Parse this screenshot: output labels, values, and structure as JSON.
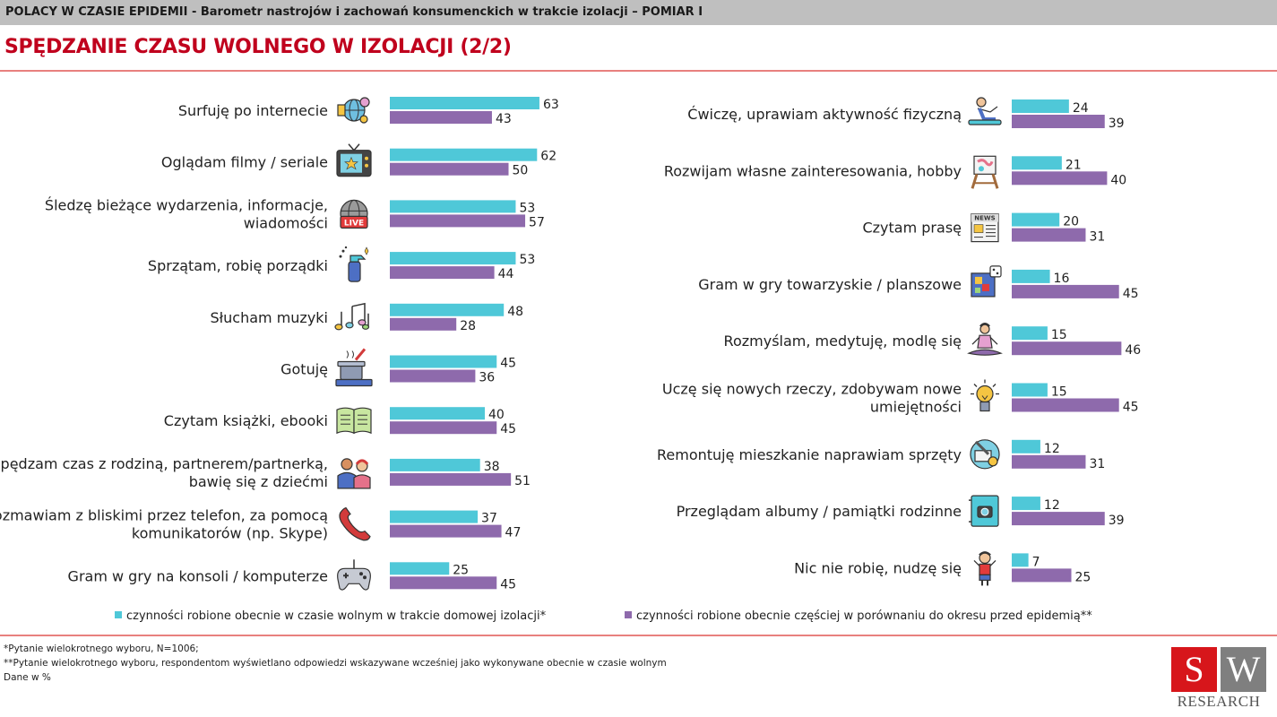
{
  "header": {
    "survey_title": "POLACY W CZASIE EPIDEMII - Barometr nastrojów i zachowań konsumenckich w trakcie izolacji – POMIAR I",
    "page_title": "SPĘDZANIE CZASU WOLNEGO W IZOLACJI (2/2)"
  },
  "chart_data": [
    {
      "type": "bar",
      "orientation": "horizontal",
      "categories": [
        [
          "Surfuję po internecie"
        ],
        [
          "Oglądam filmy / seriale"
        ],
        [
          "Śledzę bieżące wydarzenia, informacje,",
          "wiadomości"
        ],
        [
          "Sprzątam, robię porządki"
        ],
        [
          "Słucham muzyki"
        ],
        [
          "Gotuję"
        ],
        [
          "Czytam książki, ebooki"
        ],
        [
          "Spędzam czas z rodziną, partnerem/partnerką,",
          "bawię się z  dziećmi"
        ],
        [
          "Rozmawiam z bliskimi przez telefon, za pomocą",
          "komunikatorów (np. Skype)"
        ],
        [
          "Gram w gry na konsoli / komputerze"
        ]
      ],
      "icons": [
        "internet-icon",
        "tv-icon",
        "live-news-globe-icon",
        "cleaning-spray-icon",
        "music-notes-icon",
        "cooking-pot-icon",
        "open-book-icon",
        "family-icon",
        "phone-icon",
        "gamepad-icon"
      ],
      "series": [
        {
          "name": "czynności robione obecnie w czasie wolnym w trakcie domowej izolacji*",
          "color": "#4fc8d8",
          "values": [
            63,
            62,
            53,
            53,
            48,
            45,
            40,
            38,
            37,
            25
          ]
        },
        {
          "name": "czynności robione obecnie częściej w porównaniu do okresu przed epidemią**",
          "color": "#8e6aac",
          "values": [
            43,
            50,
            57,
            44,
            28,
            36,
            45,
            51,
            47,
            45
          ]
        }
      ]
    },
    {
      "type": "bar",
      "orientation": "horizontal",
      "categories": [
        [
          "Ćwiczę, uprawiam aktywność fizyczną"
        ],
        [
          "Rozwijam własne zainteresowania, hobby"
        ],
        [
          "Czytam prasę"
        ],
        [
          "Gram w gry towarzyskie / planszowe"
        ],
        [
          "Rozmyślam, medytuję, modlę się"
        ],
        [
          "Uczę się nowych rzeczy, zdobywam nowe",
          "umiejętności"
        ],
        [
          "Remontuję mieszkanie naprawiam  sprzęty"
        ],
        [
          "Przeglądam albumy / pamiątki rodzinne"
        ],
        [
          "Nic nie robię, nudzę się"
        ]
      ],
      "icons": [
        "exercise-icon",
        "easel-icon",
        "newspaper-icon",
        "board-game-icon",
        "meditation-icon",
        "lightbulb-icon",
        "repair-tools-icon",
        "photo-album-icon",
        "bored-person-icon"
      ],
      "series": [
        {
          "name": "czynności robione obecnie w czasie wolnym w trakcie domowej izolacji*",
          "color": "#4fc8d8",
          "values": [
            24,
            21,
            20,
            16,
            15,
            15,
            12,
            12,
            7
          ]
        },
        {
          "name": "czynności robione obecnie częściej w porównaniu do okresu przed epidemią**",
          "color": "#8e6aac",
          "values": [
            39,
            40,
            31,
            45,
            46,
            45,
            31,
            39,
            25
          ]
        }
      ]
    }
  ],
  "footnotes": [
    "*Pytanie wielokrotnego wyboru, N=1006;",
    "**Pytanie wielokrotnego wyboru, respondentom wyświetlano odpowiedzi wskazywane wcześniej jako wykonywane obecnie w czasie wolnym",
    "Dane w %"
  ],
  "logo": {
    "s": "S",
    "w": "W",
    "text": "RESEARCH"
  }
}
